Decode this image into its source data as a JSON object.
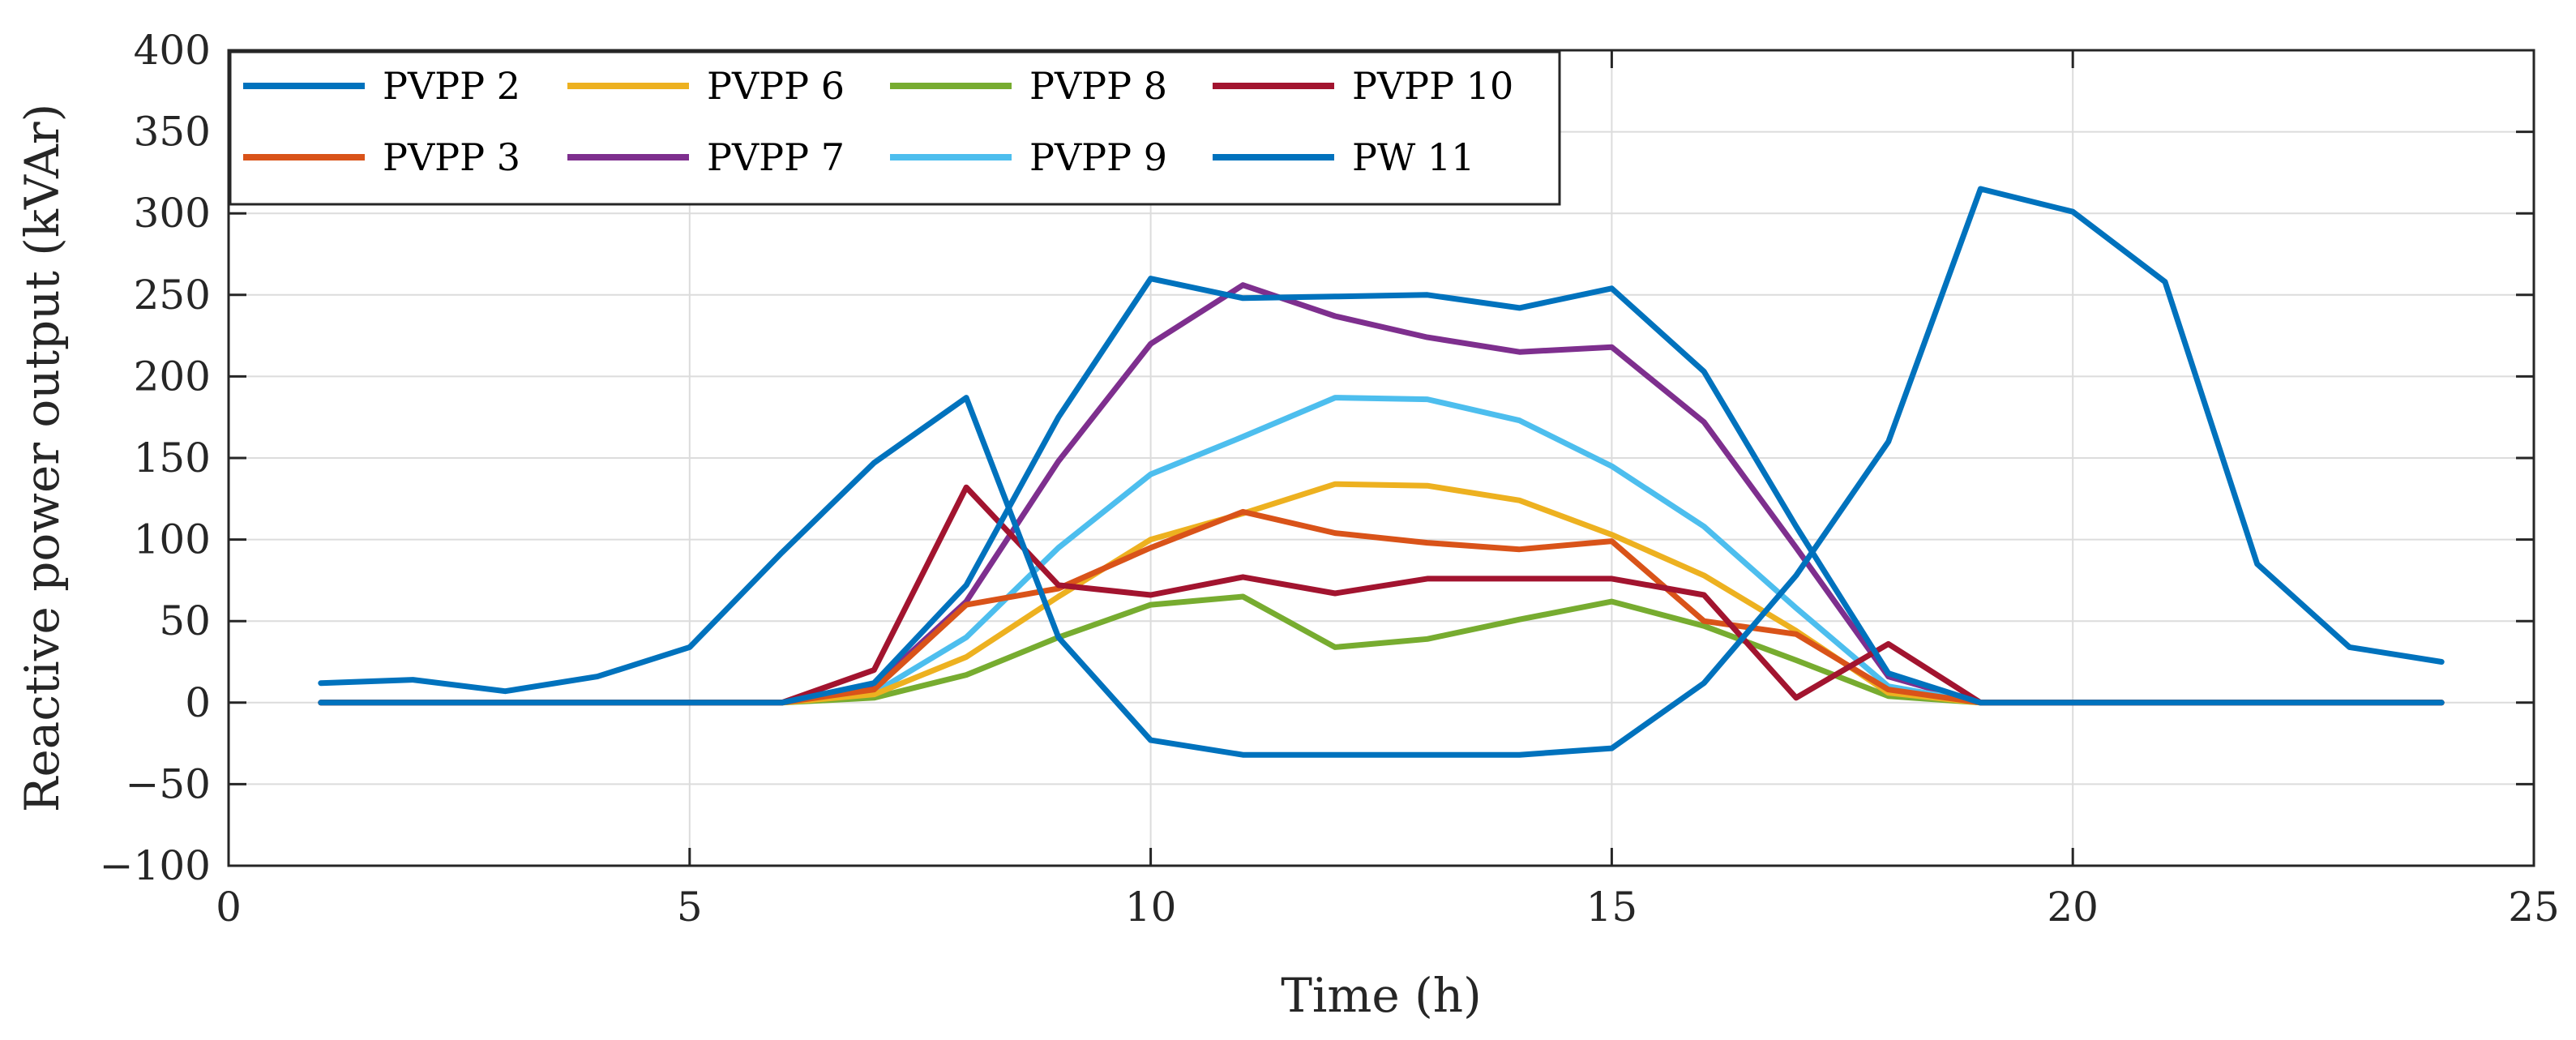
{
  "chart_data": {
    "type": "line",
    "title": "",
    "xlabel": "Time (h)",
    "ylabel": "Reactive power output (kVAr)",
    "xlim": [
      0,
      25
    ],
    "ylim": [
      -100,
      400
    ],
    "xticks": [
      0,
      5,
      10,
      15,
      20,
      25
    ],
    "yticks": [
      -100,
      -50,
      0,
      50,
      100,
      150,
      200,
      250,
      300,
      350,
      400
    ],
    "grid": true,
    "legend_position": "top-left",
    "x": [
      1,
      2,
      3,
      4,
      5,
      6,
      7,
      8,
      9,
      10,
      11,
      12,
      13,
      14,
      15,
      16,
      17,
      18,
      19,
      20,
      21,
      22,
      23,
      24
    ],
    "series": [
      {
        "name": "PVPP 2",
        "color": "#0072BD",
        "values": [
          12,
          14,
          7,
          16,
          34,
          92,
          147,
          187,
          40,
          -23,
          -32,
          -32,
          -32,
          -32,
          -28,
          12,
          78,
          160,
          315,
          301,
          258,
          85,
          34,
          25
        ]
      },
      {
        "name": "PVPP 3",
        "color": "#D95319",
        "values": [
          0,
          0,
          0,
          0,
          0,
          0,
          8,
          60,
          70,
          95,
          117,
          104,
          98,
          94,
          99,
          50,
          42,
          8,
          0,
          0,
          0,
          0,
          0,
          0
        ]
      },
      {
        "name": "PVPP 6",
        "color": "#EDB120",
        "values": [
          0,
          0,
          0,
          0,
          0,
          0,
          5,
          28,
          65,
          100,
          116,
          134,
          133,
          124,
          103,
          78,
          44,
          6,
          0,
          0,
          0,
          0,
          0,
          0
        ]
      },
      {
        "name": "PVPP 7",
        "color": "#7E2F8E",
        "values": [
          0,
          0,
          0,
          0,
          0,
          0,
          10,
          62,
          148,
          220,
          256,
          237,
          224,
          215,
          218,
          172,
          95,
          16,
          0,
          0,
          0,
          0,
          0,
          0
        ]
      },
      {
        "name": "PVPP 8",
        "color": "#77AC30",
        "values": [
          0,
          0,
          0,
          0,
          0,
          0,
          3,
          17,
          40,
          60,
          65,
          34,
          39,
          51,
          62,
          47,
          26,
          4,
          0,
          0,
          0,
          0,
          0,
          0
        ]
      },
      {
        "name": "PVPP 9",
        "color": "#4DBEEE",
        "values": [
          0,
          0,
          0,
          0,
          0,
          0,
          6,
          40,
          95,
          140,
          163,
          187,
          186,
          173,
          145,
          108,
          58,
          10,
          0,
          0,
          0,
          0,
          0,
          0
        ]
      },
      {
        "name": "PVPP 10",
        "color": "#A2142F",
        "values": [
          0,
          0,
          0,
          0,
          0,
          0,
          20,
          132,
          72,
          66,
          77,
          67,
          76,
          76,
          76,
          66,
          3,
          36,
          0,
          0,
          0,
          0,
          0,
          0
        ]
      },
      {
        "name": "PW 11",
        "color": "#0072BD",
        "values": [
          0,
          0,
          0,
          0,
          0,
          0,
          12,
          72,
          175,
          260,
          248,
          249,
          250,
          242,
          254,
          203,
          108,
          18,
          0,
          0,
          0,
          0,
          0,
          0
        ]
      }
    ]
  }
}
